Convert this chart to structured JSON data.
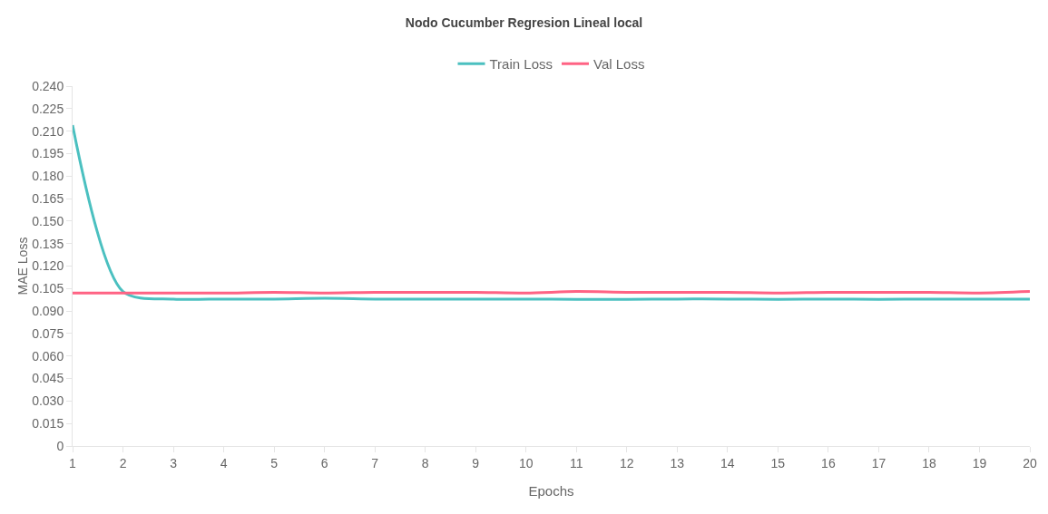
{
  "chart_data": {
    "type": "line",
    "title": "Nodo Cucumber Regresion Lineal local",
    "xlabel": "Epochs",
    "ylabel": "MAE Loss",
    "x": [
      1,
      2,
      3,
      4,
      5,
      6,
      7,
      8,
      9,
      10,
      11,
      12,
      13,
      14,
      15,
      16,
      17,
      18,
      19,
      20
    ],
    "series": [
      {
        "name": "Train Loss",
        "color": "#4bc0c0",
        "values": [
          0.214,
          0.103,
          0.098,
          0.098,
          0.098,
          0.0985,
          0.098,
          0.098,
          0.098,
          0.098,
          0.0978,
          0.0978,
          0.098,
          0.098,
          0.0978,
          0.098,
          0.0978,
          0.098,
          0.098,
          0.098
        ]
      },
      {
        "name": "Val Loss",
        "color": "#ff6384",
        "values": [
          0.102,
          0.102,
          0.102,
          0.102,
          0.1025,
          0.102,
          0.1025,
          0.1025,
          0.1025,
          0.102,
          0.103,
          0.1025,
          0.1025,
          0.1025,
          0.102,
          0.1025,
          0.1025,
          0.1025,
          0.102,
          0.103
        ]
      }
    ],
    "xlim": [
      1,
      20
    ],
    "xticks": [
      1,
      2,
      3,
      4,
      5,
      6,
      7,
      8,
      9,
      10,
      11,
      12,
      13,
      14,
      15,
      16,
      17,
      18,
      19,
      20
    ],
    "ylim": [
      0,
      0.24
    ],
    "yticks": [
      0,
      {
        "value": 0.015,
        "label": "0.015"
      },
      {
        "value": 0.03,
        "label": "0.030"
      },
      {
        "value": 0.045,
        "label": "0.045"
      },
      {
        "value": 0.06,
        "label": "0.060"
      },
      {
        "value": 0.075,
        "label": "0.075"
      },
      {
        "value": 0.09,
        "label": "0.090"
      },
      {
        "value": 0.105,
        "label": "0.105"
      },
      {
        "value": 0.12,
        "label": "0.120"
      },
      {
        "value": 0.135,
        "label": "0.135"
      },
      {
        "value": 0.15,
        "label": "0.150"
      },
      {
        "value": 0.165,
        "label": "0.165"
      },
      {
        "value": 0.18,
        "label": "0.180"
      },
      {
        "value": 0.195,
        "label": "0.195"
      },
      {
        "value": 0.21,
        "label": "0.210"
      },
      {
        "value": 0.225,
        "label": "0.225"
      },
      {
        "value": 0.24,
        "label": "0.240"
      }
    ],
    "grid": false,
    "legend": "top",
    "marker": "none",
    "line_style": "solid"
  }
}
